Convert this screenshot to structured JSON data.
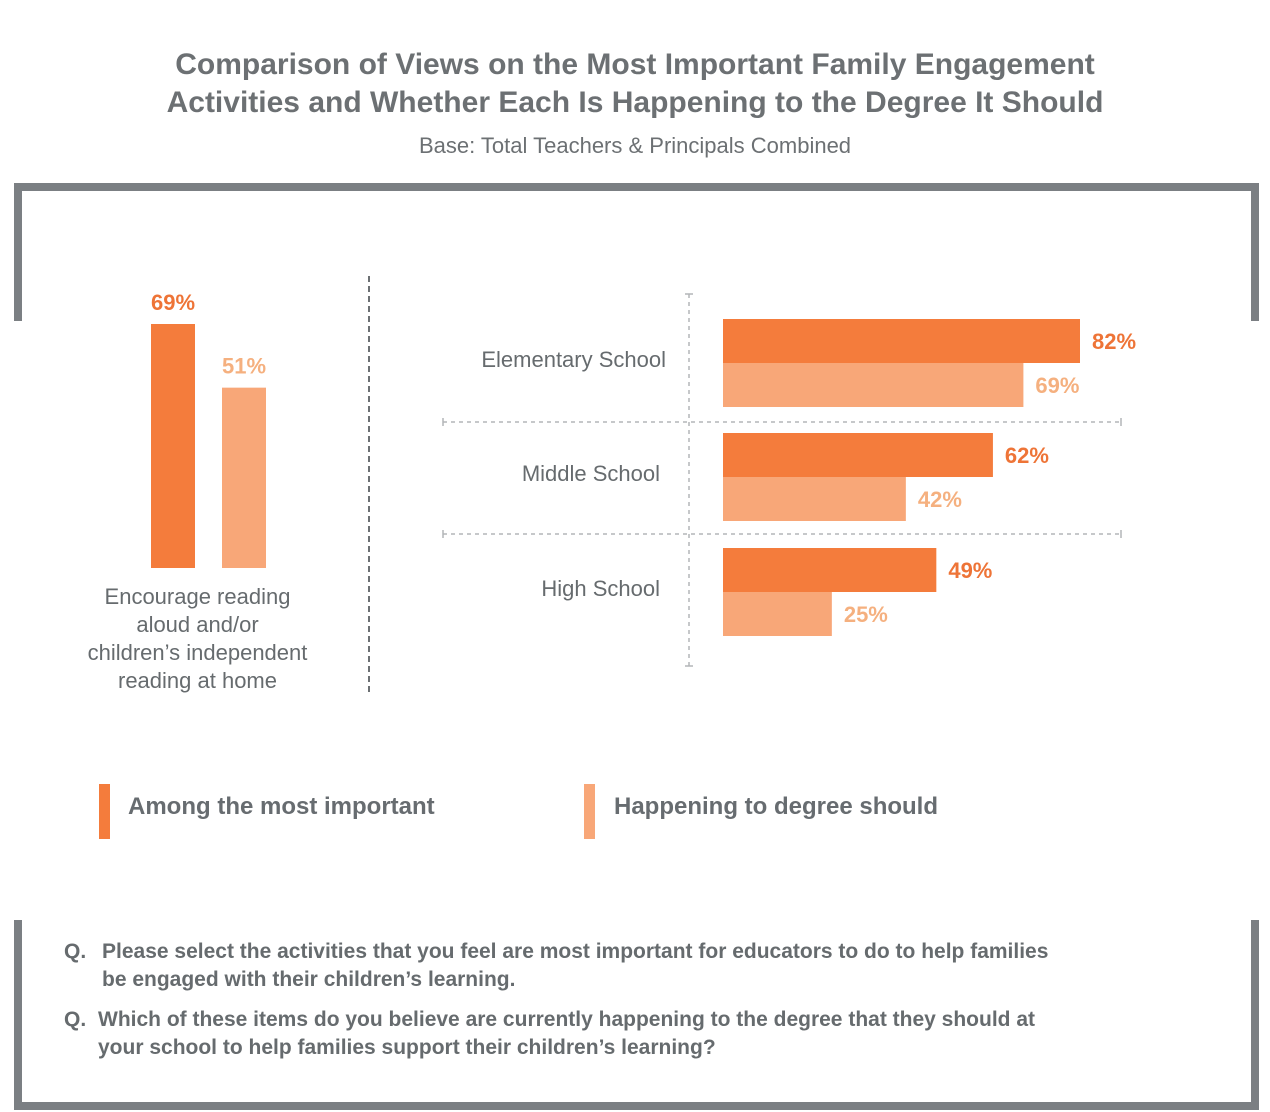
{
  "title_line1": "Comparison of Views on the Most Important Family Engagement",
  "title_line2": "Activities and Whether Each Is Happening to the Degree It Should",
  "subtitle": "Base: Total Teachers & Principals Combined",
  "colors": {
    "important": "#f47c3c",
    "happening": "#f8a778",
    "frame": "#7b7f83",
    "text": "#666b6e"
  },
  "left_panel": {
    "label_lines": [
      "Encourage reading",
      "aloud and/or",
      "children’s independent",
      "reading at home"
    ]
  },
  "legend": {
    "important": "Among the most important",
    "happening": "Happening to degree should"
  },
  "questions": [
    {
      "label": "Q.",
      "lines": [
        "Please select the activities that you feel are most important for educators to do to help families",
        "be engaged with their children’s learning."
      ]
    },
    {
      "label": "Q.",
      "lines": [
        "Which of these items do you believe are currently happening to the degree that they should at",
        "your school to help families support their children’s learning?"
      ]
    }
  ],
  "chart_data": [
    {
      "type": "bar",
      "orientation": "vertical",
      "categories": [
        "Encourage reading aloud and/or children’s independent reading at home"
      ],
      "series": [
        {
          "name": "Among the most important",
          "values": [
            69
          ],
          "labels": [
            "69%"
          ]
        },
        {
          "name": "Happening to degree should",
          "values": [
            51
          ],
          "labels": [
            "51%"
          ]
        }
      ],
      "ylim": [
        0,
        100
      ]
    },
    {
      "type": "bar",
      "orientation": "horizontal",
      "categories": [
        "Elementary School",
        "Middle School",
        "High School"
      ],
      "series": [
        {
          "name": "Among the most important",
          "values": [
            82,
            62,
            49
          ],
          "labels": [
            "82%",
            "62%",
            "49%"
          ]
        },
        {
          "name": "Happening to degree should",
          "values": [
            69,
            42,
            25
          ],
          "labels": [
            "69%",
            "42%",
            "25%"
          ]
        }
      ],
      "xlim": [
        0,
        100
      ]
    }
  ]
}
